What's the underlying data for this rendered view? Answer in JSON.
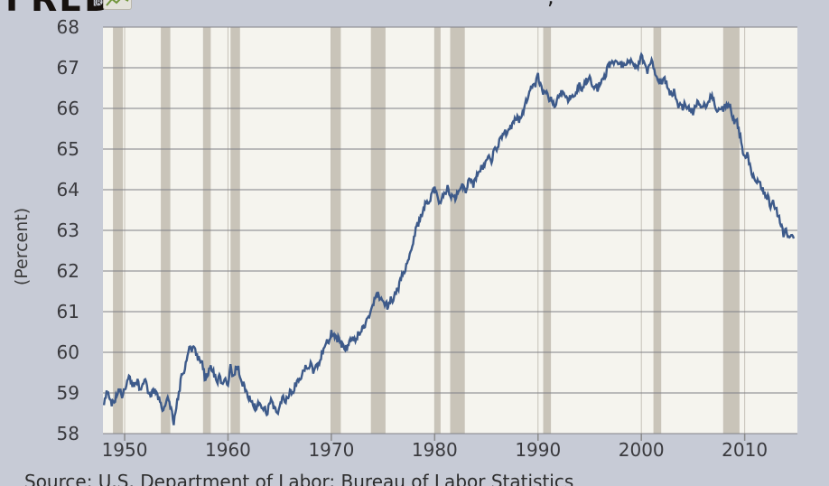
{
  "header": {
    "logo": "FRED",
    "logo_reg": "®",
    "title_fragment": ","
  },
  "footer": {
    "source": "Source: U.S. Department of Labor: Bureau of Labor Statistics"
  },
  "chart_data": {
    "type": "line",
    "title": "",
    "xlabel": "",
    "ylabel": "(Percent)",
    "xlim": [
      1947.9,
      2015.1
    ],
    "ylim": [
      58,
      68
    ],
    "x_ticks": [
      1950,
      1960,
      1970,
      1980,
      1990,
      2000,
      2010
    ],
    "y_ticks": [
      58,
      59,
      60,
      61,
      62,
      63,
      64,
      65,
      66,
      67,
      68
    ],
    "grid": true,
    "legend": false,
    "recessions": [
      [
        1948.87,
        1949.83
      ],
      [
        1953.5,
        1954.42
      ],
      [
        1957.58,
        1958.33
      ],
      [
        1960.25,
        1961.17
      ],
      [
        1969.92,
        1970.92
      ],
      [
        1973.83,
        1975.25
      ],
      [
        1980.0,
        1980.58
      ],
      [
        1981.5,
        1982.92
      ],
      [
        1990.5,
        1991.25
      ],
      [
        2001.17,
        2001.92
      ],
      [
        2007.92,
        2009.5
      ]
    ],
    "series": [
      {
        "name": "series-1",
        "start_year": 1948,
        "step_years": 0.25,
        "values": [
          58.7,
          59.0,
          58.9,
          58.7,
          58.8,
          59.0,
          59.1,
          58.9,
          59.1,
          59.3,
          59.4,
          59.2,
          59.2,
          59.3,
          59.1,
          59.3,
          59.3,
          59.0,
          58.9,
          59.1,
          59.0,
          58.9,
          58.7,
          58.6,
          58.7,
          58.9,
          58.6,
          58.2,
          58.7,
          59.0,
          59.4,
          59.5,
          59.8,
          60.1,
          60.0,
          60.2,
          59.9,
          59.8,
          59.7,
          59.4,
          59.4,
          59.6,
          59.6,
          59.4,
          59.3,
          59.4,
          59.2,
          59.4,
          59.2,
          59.7,
          59.4,
          59.6,
          59.6,
          59.3,
          59.2,
          59.0,
          58.9,
          58.8,
          58.7,
          58.6,
          58.8,
          58.7,
          58.6,
          58.5,
          58.7,
          58.8,
          58.6,
          58.5,
          58.7,
          58.9,
          58.8,
          58.9,
          59.0,
          59.0,
          59.2,
          59.3,
          59.4,
          59.5,
          59.7,
          59.6,
          59.7,
          59.5,
          59.6,
          59.7,
          59.9,
          60.1,
          60.2,
          60.3,
          60.5,
          60.4,
          60.3,
          60.4,
          60.2,
          60.1,
          60.1,
          60.3,
          60.4,
          60.3,
          60.4,
          60.5,
          60.6,
          60.7,
          60.8,
          61.0,
          61.2,
          61.3,
          61.4,
          61.3,
          61.3,
          61.2,
          61.1,
          61.3,
          61.3,
          61.5,
          61.6,
          61.8,
          62.0,
          62.1,
          62.3,
          62.6,
          62.8,
          63.1,
          63.2,
          63.4,
          63.6,
          63.7,
          63.7,
          63.9,
          64.0,
          63.8,
          63.7,
          63.9,
          63.9,
          64.1,
          63.8,
          63.9,
          63.8,
          64.0,
          64.1,
          64.1,
          64.0,
          64.2,
          64.2,
          64.1,
          64.3,
          64.5,
          64.5,
          64.6,
          64.7,
          64.8,
          64.7,
          65.0,
          65.0,
          65.2,
          65.3,
          65.4,
          65.4,
          65.5,
          65.6,
          65.7,
          65.8,
          65.7,
          65.9,
          66.1,
          66.2,
          66.5,
          66.5,
          66.6,
          66.8,
          66.6,
          66.4,
          66.4,
          66.3,
          66.2,
          66.1,
          66.1,
          66.3,
          66.4,
          66.4,
          66.3,
          66.2,
          66.3,
          66.3,
          66.4,
          66.6,
          66.5,
          66.6,
          66.7,
          66.8,
          66.5,
          66.6,
          66.5,
          66.6,
          66.7,
          66.8,
          67.0,
          67.1,
          67.1,
          67.2,
          67.1,
          67.1,
          67.0,
          67.1,
          67.2,
          67.2,
          67.1,
          67.0,
          67.1,
          67.3,
          67.1,
          66.9,
          67.0,
          67.2,
          66.9,
          66.8,
          66.7,
          66.6,
          66.7,
          66.6,
          66.4,
          66.4,
          66.4,
          66.1,
          66.1,
          66.0,
          66.1,
          66.0,
          66.0,
          65.9,
          66.1,
          66.2,
          66.0,
          66.1,
          66.1,
          66.2,
          66.3,
          66.2,
          66.0,
          66.0,
          66.0,
          66.0,
          66.1,
          66.1,
          65.9,
          65.7,
          65.7,
          65.4,
          65.0,
          64.8,
          64.9,
          64.6,
          64.4,
          64.2,
          64.2,
          64.1,
          64.0,
          63.8,
          63.8,
          63.6,
          63.7,
          63.5,
          63.4,
          63.2,
          62.9,
          63.0,
          62.8,
          62.8,
          62.8
        ]
      }
    ],
    "colors": {
      "line": "#3d5a8a",
      "plot_bg": "#f5f4ee",
      "page_bg": "#c7cbd6",
      "recession": "#c9c4b9",
      "gridline_h": "#808086",
      "gridline_v": "#c6c2b8",
      "tick_mark": "#8b8b8b",
      "tick_label": "#3a3a3e",
      "logo": "#16110e",
      "logo_icon_line": "#71953c"
    },
    "render": {
      "noise_amplitude": 0.09,
      "line_width": 2.4
    }
  }
}
